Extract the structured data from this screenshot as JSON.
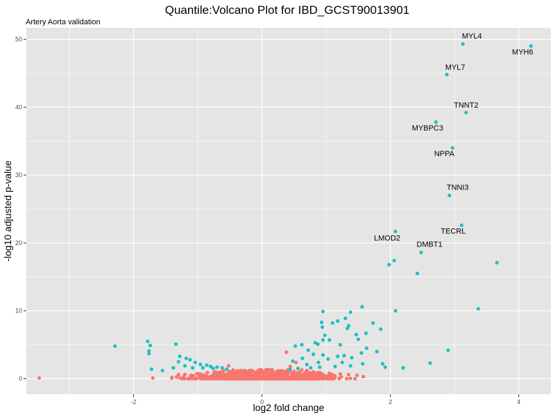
{
  "chart_data": {
    "type": "scatter",
    "title": "Quantile:Volcano Plot for IBD_GCST90013901",
    "subtitle": "Artery Aorta validation",
    "xlabel": "log2 fold change",
    "ylabel": "-log10 adjusted p-value",
    "xlim": [
      -3.67,
      4.5
    ],
    "ylim": [
      -2.3,
      51.7
    ],
    "x_ticks": [
      -2,
      0,
      2,
      4
    ],
    "y_ticks": [
      0,
      10,
      20,
      30,
      40,
      50
    ],
    "grid": true,
    "legend": "none",
    "colors": {
      "significant": "#1fbfc4",
      "not_significant": "#f8766d",
      "panel": "#e5e5e5",
      "grid": "#ffffff"
    },
    "labeled_points": [
      {
        "label": "MYL4",
        "x": 3.13,
        "y": 49.3
      },
      {
        "label": "MYH6",
        "x": 4.19,
        "y": 49.0
      },
      {
        "label": "MYL7",
        "x": 2.88,
        "y": 44.8
      },
      {
        "label": "TNNT2",
        "x": 3.18,
        "y": 39.2
      },
      {
        "label": "MYBPC3",
        "x": 2.71,
        "y": 37.8
      },
      {
        "label": "NPPA",
        "x": 2.97,
        "y": 34.0
      },
      {
        "label": "TNNI3",
        "x": 2.92,
        "y": 27.0
      },
      {
        "label": "TECRL",
        "x": 3.11,
        "y": 22.6
      },
      {
        "label": "LMOD2",
        "x": 2.08,
        "y": 21.7
      },
      {
        "label": "DMBT1",
        "x": 2.48,
        "y": 18.6
      }
    ],
    "series": [
      {
        "color_key": "significant",
        "points": [
          [
            3.66,
            17.1
          ],
          [
            1.98,
            16.8
          ],
          [
            2.06,
            17.4
          ],
          [
            2.42,
            15.5
          ],
          [
            3.37,
            10.3
          ],
          [
            2.08,
            10.0
          ],
          [
            1.56,
            10.6
          ],
          [
            1.38,
            9.8
          ],
          [
            1.3,
            8.9
          ],
          [
            1.18,
            8.5
          ],
          [
            1.35,
            7.8
          ],
          [
            1.1,
            8.2
          ],
          [
            0.95,
            9.9
          ],
          [
            0.93,
            8.3
          ],
          [
            1.33,
            7.4
          ],
          [
            1.47,
            6.5
          ],
          [
            1.62,
            6.7
          ],
          [
            1.73,
            8.2
          ],
          [
            1.85,
            7.3
          ],
          [
            0.94,
            7.6
          ],
          [
            0.98,
            6.4
          ],
          [
            0.83,
            5.3
          ],
          [
            1.5,
            5.8
          ],
          [
            1.63,
            4.5
          ],
          [
            1.79,
            4.0
          ],
          [
            1.55,
            3.8
          ],
          [
            1.22,
            5.0
          ],
          [
            1.05,
            5.7
          ],
          [
            0.95,
            5.7
          ],
          [
            0.87,
            5.1
          ],
          [
            0.72,
            4.2
          ],
          [
            0.62,
            5.0
          ],
          [
            0.52,
            4.8
          ],
          [
            1.28,
            3.4
          ],
          [
            1.4,
            3.1
          ],
          [
            1.18,
            3.3
          ],
          [
            0.95,
            3.5
          ],
          [
            0.8,
            3.6
          ],
          [
            0.63,
            3.0
          ],
          [
            0.48,
            2.6
          ],
          [
            0.7,
            2.1
          ],
          [
            0.88,
            2.4
          ],
          [
            1.03,
            2.9
          ],
          [
            1.25,
            2.4
          ],
          [
            1.38,
            1.9
          ],
          [
            1.57,
            2.2
          ],
          [
            1.88,
            2.2
          ],
          [
            1.92,
            1.7
          ],
          [
            2.2,
            1.6
          ],
          [
            2.62,
            2.3
          ],
          [
            2.9,
            4.2
          ],
          [
            1.14,
            1.8
          ],
          [
            0.9,
            1.7
          ],
          [
            0.76,
            1.6
          ],
          [
            0.56,
            1.5
          ],
          [
            0.44,
            1.4
          ],
          [
            -2.29,
            4.8
          ],
          [
            -1.78,
            5.5
          ],
          [
            -1.74,
            4.9
          ],
          [
            -1.76,
            4.1
          ],
          [
            -1.76,
            3.7
          ],
          [
            -1.34,
            5.1
          ],
          [
            -1.28,
            3.3
          ],
          [
            -1.18,
            3.0
          ],
          [
            -1.12,
            2.8
          ],
          [
            -1.04,
            2.4
          ],
          [
            -0.96,
            2.1
          ],
          [
            -0.86,
            2.0
          ],
          [
            -0.8,
            1.8
          ],
          [
            -0.7,
            1.7
          ],
          [
            -0.62,
            1.6
          ],
          [
            -0.55,
            1.4
          ],
          [
            -1.3,
            2.5
          ],
          [
            -1.38,
            1.6
          ],
          [
            -1.55,
            1.2
          ],
          [
            -1.72,
            1.4
          ],
          [
            -1.2,
            1.9
          ],
          [
            -1.08,
            1.6
          ],
          [
            -0.92,
            1.6
          ],
          [
            -0.76,
            1.5
          ]
        ]
      },
      {
        "color_key": "not_significant",
        "points": [
          [
            -3.47,
            0.1
          ],
          [
            0.38,
            3.9
          ],
          [
            0.53,
            2.4
          ],
          [
            0.44,
            1.8
          ],
          [
            0.4,
            1.3
          ],
          [
            0.5,
            1.1
          ],
          [
            0.62,
            1.3
          ],
          [
            0.7,
            1.2
          ],
          [
            0.8,
            1.0
          ],
          [
            0.9,
            0.9
          ],
          [
            1.05,
            0.8
          ],
          [
            1.22,
            0.7
          ],
          [
            1.35,
            0.6
          ],
          [
            1.48,
            0.5
          ],
          [
            1.58,
            0.3
          ],
          [
            -0.52,
            1.9
          ],
          [
            -0.45,
            1.3
          ],
          [
            -0.6,
            1.2
          ],
          [
            -0.72,
            1.0
          ],
          [
            -0.85,
            0.9
          ],
          [
            -0.98,
            0.7
          ],
          [
            -1.1,
            0.5
          ],
          [
            -1.22,
            0.3
          ],
          [
            -1.4,
            0.2
          ],
          [
            -1.7,
            0.1
          ],
          [
            -1.3,
            0.6
          ],
          [
            -0.4,
            1.0
          ],
          [
            0.3,
            1.1
          ],
          [
            0.2,
            0.9
          ]
        ]
      }
    ]
  }
}
